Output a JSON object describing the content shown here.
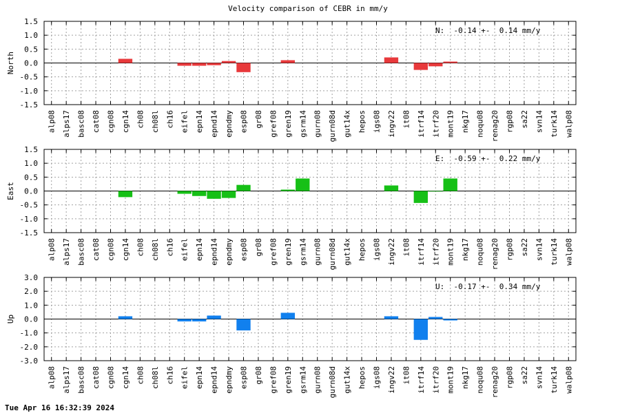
{
  "title": "Velocity comparison of CEBR in mm/y",
  "timestamp": "Tue Apr 16 16:32:39 2024",
  "chart_data": [
    {
      "type": "bar",
      "ylabel": "North",
      "color": "#e8393b",
      "ylim": [
        -1.5,
        1.5
      ],
      "yticks": [
        "1.5",
        "1.0",
        "0.5",
        "0.0",
        "-0.5",
        "-1.0",
        "-1.5"
      ],
      "stat": "N:  -0.14 +-  0.14 mm/y",
      "grid": true,
      "categories": [
        "alp08",
        "alps17",
        "basc08",
        "cat08",
        "cgn08",
        "cgn14",
        "ch08",
        "ch08l",
        "ch16",
        "eifel",
        "epn14",
        "epnd14",
        "epndmy",
        "esp08",
        "gr08",
        "gref08",
        "gren19",
        "gsrm14",
        "gurn08",
        "gurn08d",
        "gut14x",
        "hepos",
        "igs08",
        "ingv22",
        "it08",
        "itrf14",
        "itrf20",
        "mont19",
        "nkg17",
        "noqu08",
        "renag20",
        "rgp08",
        "sa22",
        "svn14",
        "turk14",
        "walp08"
      ],
      "values": [
        null,
        null,
        null,
        null,
        null,
        0.15,
        null,
        null,
        null,
        -0.1,
        -0.1,
        -0.08,
        0.07,
        -0.33,
        null,
        null,
        0.1,
        null,
        null,
        null,
        null,
        null,
        null,
        0.2,
        null,
        -0.25,
        -0.12,
        0.05,
        null,
        null,
        null,
        null,
        null,
        null,
        null,
        null
      ]
    },
    {
      "type": "bar",
      "ylabel": "East",
      "color": "#16c016",
      "ylim": [
        -1.5,
        1.5
      ],
      "yticks": [
        "1.5",
        "1.0",
        "0.5",
        "0.0",
        "-0.5",
        "-1.0",
        "-1.5"
      ],
      "stat": "E:  -0.59 +-  0.22 mm/y",
      "grid": true,
      "categories": [
        "alp08",
        "alps17",
        "basc08",
        "cat08",
        "cgn08",
        "cgn14",
        "ch08",
        "ch08l",
        "ch16",
        "eifel",
        "epn14",
        "epnd14",
        "epndmy",
        "esp08",
        "gr08",
        "gref08",
        "gren19",
        "gsrm14",
        "gurn08",
        "gurn08d",
        "gut14x",
        "hepos",
        "igs08",
        "ingv22",
        "it08",
        "itrf14",
        "itrf20",
        "mont19",
        "nkg17",
        "noqu08",
        "renag20",
        "rgp08",
        "sa22",
        "svn14",
        "turk14",
        "walp08"
      ],
      "values": [
        null,
        null,
        null,
        null,
        null,
        -0.22,
        null,
        null,
        null,
        -0.1,
        -0.18,
        -0.28,
        -0.25,
        0.22,
        null,
        null,
        0.05,
        0.45,
        null,
        null,
        null,
        null,
        null,
        0.2,
        null,
        -0.43,
        -0.02,
        0.45,
        null,
        null,
        null,
        null,
        null,
        null,
        null,
        null
      ]
    },
    {
      "type": "bar",
      "ylabel": "Up",
      "color": "#1180ee",
      "ylim": [
        -3.0,
        3.0
      ],
      "yticks": [
        "3.0",
        "2.0",
        "1.0",
        "0.0",
        "-1.0",
        "-2.0",
        "-3.0"
      ],
      "stat": "U:  -0.17 +-  0.34 mm/y",
      "grid": true,
      "categories": [
        "alp08",
        "alps17",
        "basc08",
        "cat08",
        "cgn08",
        "cgn14",
        "ch08",
        "ch08l",
        "ch16",
        "eifel",
        "epn14",
        "epnd14",
        "epndmy",
        "esp08",
        "gr08",
        "gref08",
        "gren19",
        "gsrm14",
        "gurn08",
        "gurn08d",
        "gut14x",
        "hepos",
        "igs08",
        "ingv22",
        "it08",
        "itrf14",
        "itrf20",
        "mont19",
        "nkg17",
        "noqu08",
        "renag20",
        "rgp08",
        "sa22",
        "svn14",
        "turk14",
        "walp08"
      ],
      "values": [
        null,
        null,
        null,
        null,
        null,
        0.2,
        null,
        null,
        null,
        -0.17,
        -0.17,
        0.25,
        null,
        -0.82,
        null,
        null,
        0.45,
        null,
        null,
        null,
        null,
        null,
        null,
        0.2,
        null,
        -1.5,
        0.15,
        -0.1,
        null,
        null,
        null,
        null,
        null,
        null,
        null,
        null
      ]
    }
  ]
}
